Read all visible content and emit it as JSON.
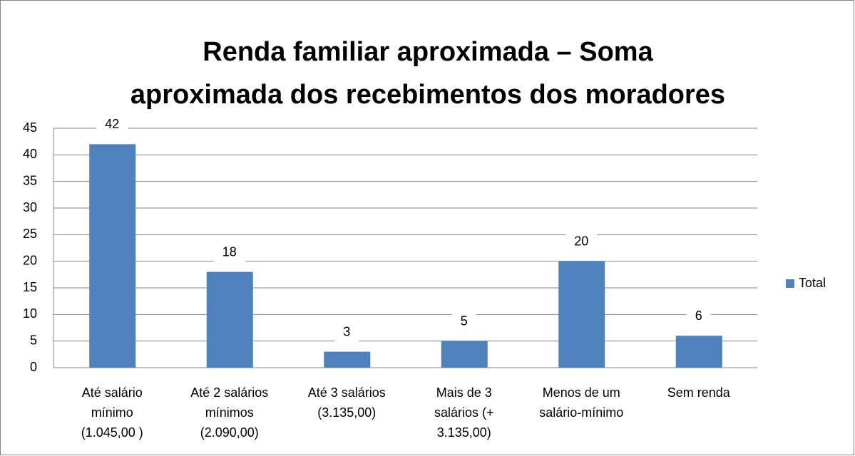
{
  "chart_data": {
    "type": "bar",
    "title": "Renda familiar aproximada – Soma aproximada dos recebimentos dos moradores",
    "categories": [
      "Até  salário mínimo (1.045,00 )",
      "Até 2 salários mínimos (2.090,00)",
      "Até 3 salários (3.135,00)",
      "Mais de 3 salários (+ 3.135,00)",
      "Menos de um salário-mínimo",
      "Sem renda"
    ],
    "series": [
      {
        "name": "Total",
        "color": "#4f81bd",
        "values": [
          42,
          18,
          3,
          5,
          20,
          6
        ]
      }
    ],
    "ylim": [
      0,
      45
    ],
    "yticks": [
      0,
      5,
      10,
      15,
      20,
      25,
      30,
      35,
      40,
      45
    ],
    "grid": true,
    "legend": "right"
  }
}
